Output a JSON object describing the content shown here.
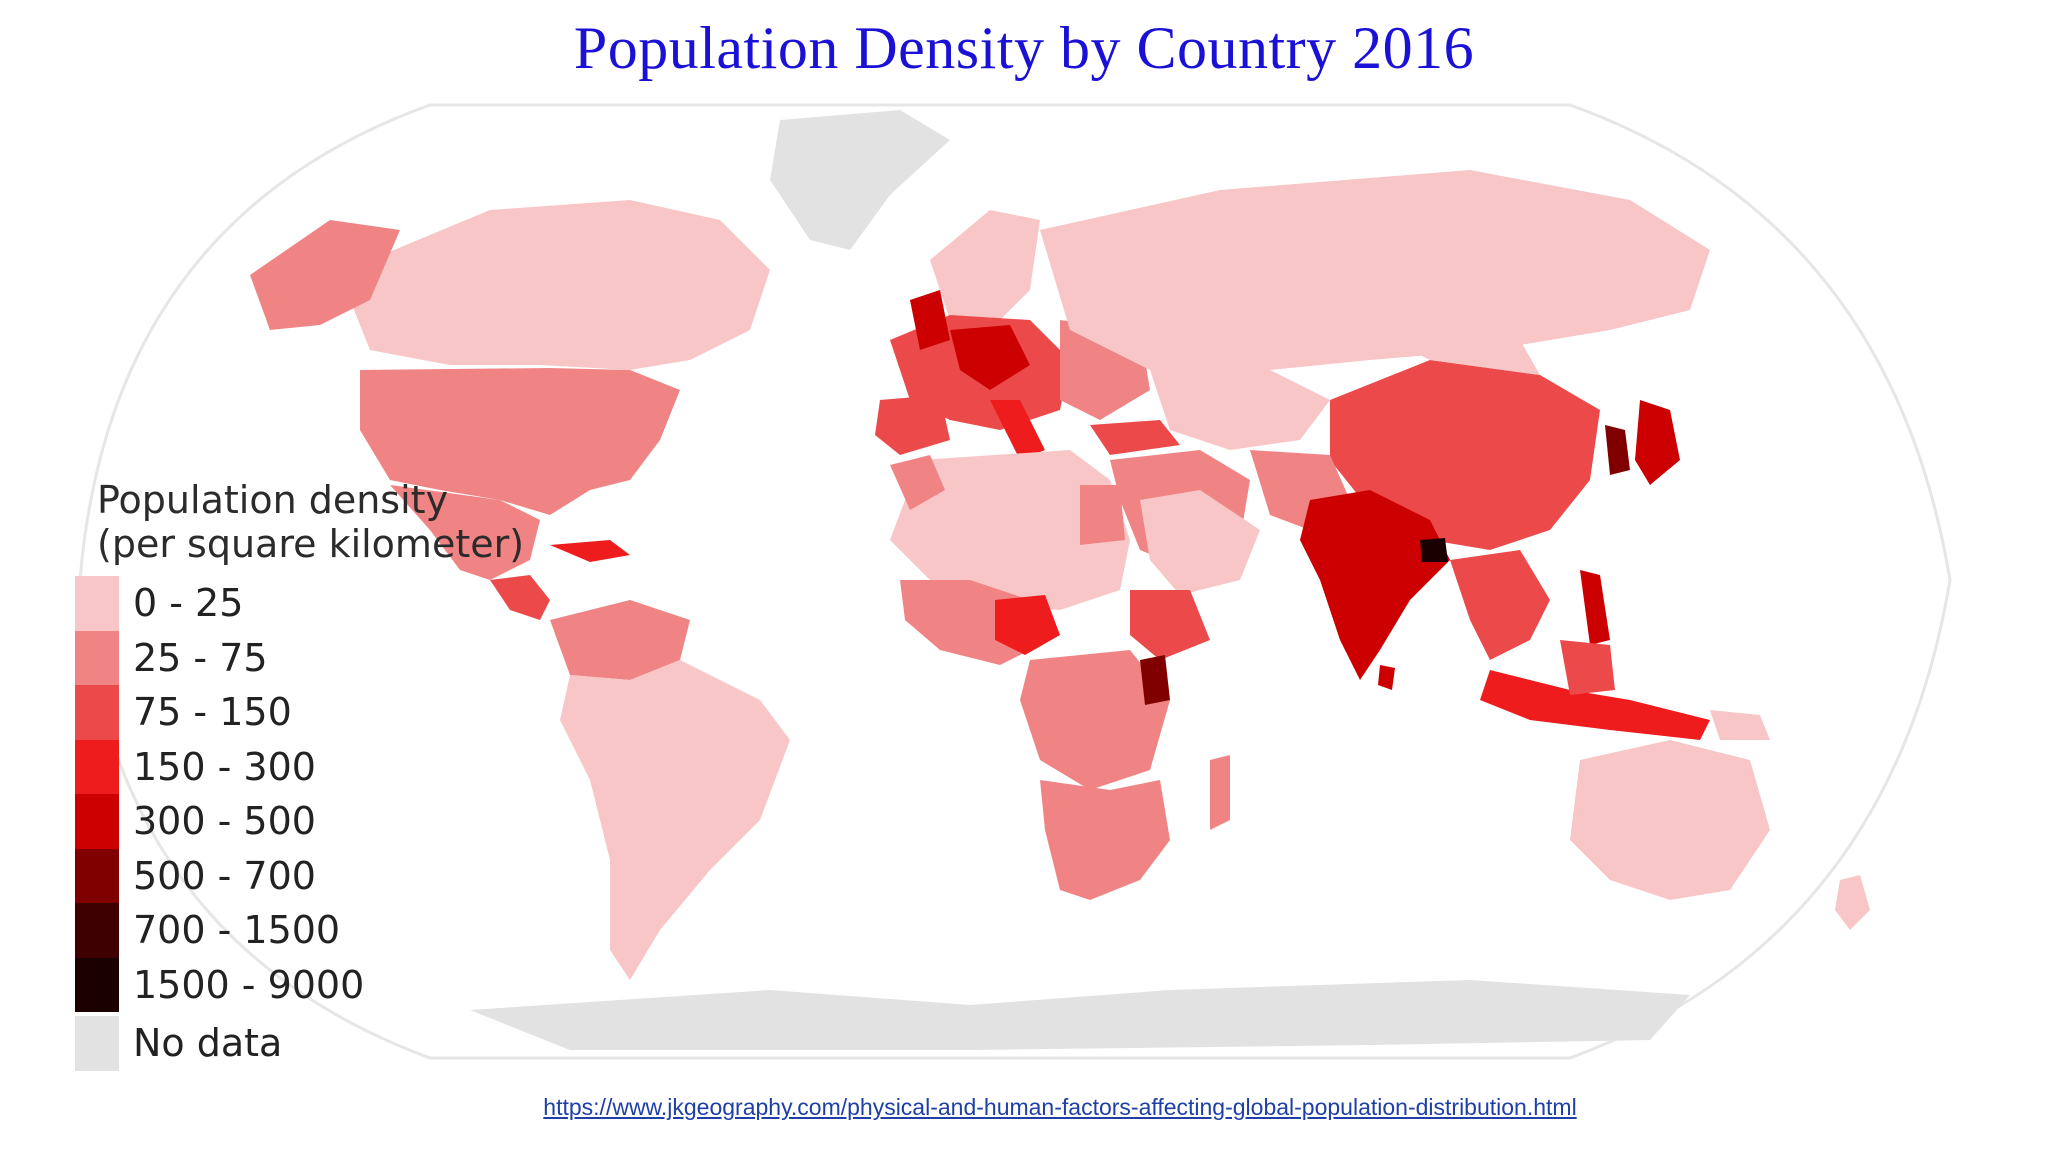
{
  "title": "Population Density by Country 2016",
  "legend": {
    "title_line1": "Population density",
    "title_line2": "(per square kilometer)",
    "classes": [
      {
        "label": "0 - 25",
        "color": "#f8c6c6"
      },
      {
        "label": "25 - 75",
        "color": "#f08484"
      },
      {
        "label": "75 - 150",
        "color": "#ec4a4a"
      },
      {
        "label": "150 - 300",
        "color": "#ee1c1c"
      },
      {
        "label": "300 - 500",
        "color": "#cc0000"
      },
      {
        "label": "500 - 700",
        "color": "#800000"
      },
      {
        "label": "700 - 1500",
        "color": "#3e0000"
      },
      {
        "label": "1500 - 9000",
        "color": "#1a0000"
      },
      {
        "label": "No data",
        "color": "#e2e2e2"
      }
    ]
  },
  "source_link": "https://www.jkgeography.com/physical-and-human-factors-affecting-global-population-distribution.html"
}
